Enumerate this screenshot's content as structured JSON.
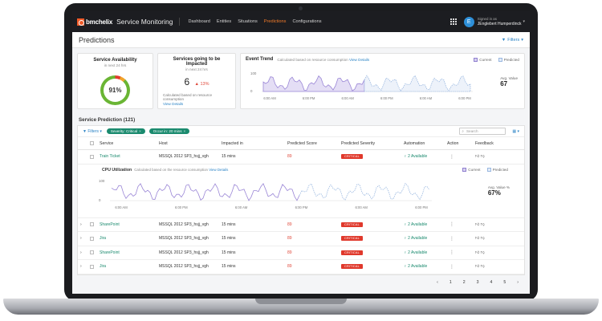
{
  "brand": {
    "name": "bmchelix",
    "product": "Service Monitoring"
  },
  "nav": {
    "links": [
      "Dashboard",
      "Entities",
      "Situations",
      "Predictions",
      "Configurations"
    ],
    "active": "Predictions"
  },
  "user": {
    "initial": "E",
    "signed_in_label": "Signed in as",
    "name": "JEnglebert Humperdinck"
  },
  "page": {
    "title": "Predictions",
    "filters_label": "Filters"
  },
  "cards": {
    "availability": {
      "title": "Service Availability",
      "subtitle": "in next 24 hrs",
      "value": "91%",
      "percent": 91
    },
    "impacted": {
      "title": "Services going to be Impacted",
      "subtitle": "in next 24 hrs",
      "value": "6",
      "delta": "13%",
      "note": "Calculated based on resource consumption",
      "link": "View Details"
    },
    "trend": {
      "title": "Event Trend",
      "subtitle": "Calculated based on resource consumption",
      "link": "View Details",
      "legend": [
        "Current",
        "Predicted"
      ],
      "y_tick": "100",
      "y_tick_zero": "0",
      "x_ticks": [
        "6:00 AM",
        "6:00 PM",
        "6:00 AM",
        "6:00 PM",
        "6:00 AM",
        "6:00 PM"
      ],
      "avg_label": "Avg. Value",
      "avg_value": "67"
    }
  },
  "prediction": {
    "title": "Service Prediction (121)",
    "filters_label": "Filters",
    "chips": [
      "Severity: Critical",
      "Occur in: 20 mins"
    ],
    "search_placeholder": "Search",
    "columns": [
      "Service",
      "Host",
      "Impacted in",
      "Predicted Score",
      "Predicted Severity",
      "Automation",
      "Action",
      "Feedback"
    ],
    "rows": [
      {
        "service": "Train Ticket",
        "host": "MSSQL 2012 SP3_hsjj_vgh",
        "impacted": "15 mins",
        "score": "89",
        "severity": "CRITICAL",
        "automation": "2 Available"
      },
      {
        "service": "SharePoint",
        "host": "MSSQL 2012 SP3_hsjj_vgh",
        "impacted": "15 mins",
        "score": "89",
        "severity": "CRITICAL",
        "automation": "2 Available"
      },
      {
        "service": "Jira",
        "host": "MSSQL 2012 SP3_hsjj_vgh",
        "impacted": "15 mins",
        "score": "89",
        "severity": "CRITICAL",
        "automation": "2 Available"
      },
      {
        "service": "SharePoint",
        "host": "MSSQL 2012 SP3_hsjj_vgh",
        "impacted": "15 mins",
        "score": "89",
        "severity": "CRITICAL",
        "automation": "2 Available"
      },
      {
        "service": "Jira",
        "host": "MSSQL 2012 SP3_hsjj_vgh",
        "impacted": "15 mins",
        "score": "89",
        "severity": "CRITICAL",
        "automation": "2 Available"
      }
    ],
    "cpu": {
      "title": "CPU Utilization",
      "subtitle": "Calculated based on the resource consumption",
      "link": "View Details",
      "legend": [
        "Current",
        "Predicted"
      ],
      "y_tick": "100",
      "y_tick_zero": "0",
      "x_ticks": [
        "6:00 AM",
        "6:00 PM",
        "6:00 AM",
        "6:00 PM",
        "6:00 AM",
        "6:00 PM"
      ],
      "avg_label": "Avg. Value %",
      "avg_value": "67%"
    },
    "pages": [
      "1",
      "2",
      "3",
      "4",
      "5"
    ]
  },
  "colors": {
    "accent": "#f07a2a",
    "link": "#2b83c5",
    "green": "#1a8a6e",
    "critical": "#e0392c",
    "current_line": "#9a86d6",
    "predicted_line": "#9ab8e0"
  }
}
